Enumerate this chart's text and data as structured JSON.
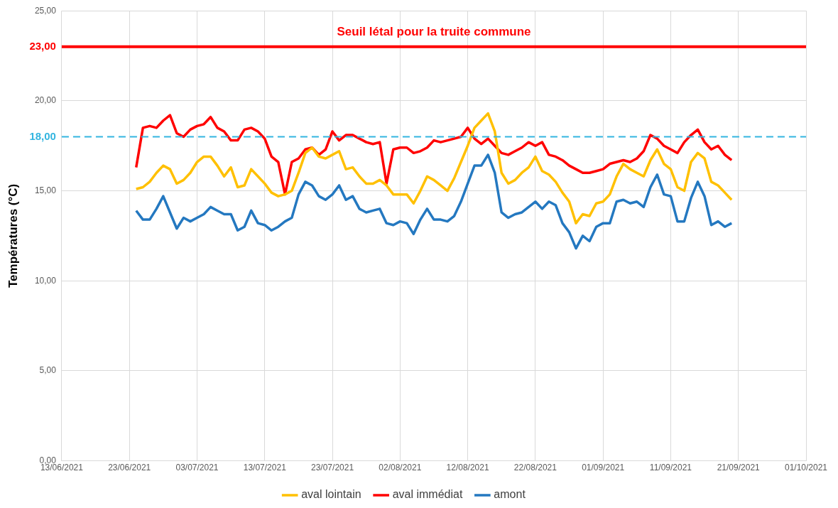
{
  "chart_data": {
    "type": "line",
    "ylabel": "Températures (°C)",
    "x": [
      "2021-06-24",
      "2021-06-25",
      "2021-06-26",
      "2021-06-27",
      "2021-06-28",
      "2021-06-29",
      "2021-06-30",
      "2021-07-01",
      "2021-07-02",
      "2021-07-03",
      "2021-07-04",
      "2021-07-05",
      "2021-07-06",
      "2021-07-07",
      "2021-07-08",
      "2021-07-09",
      "2021-07-10",
      "2021-07-11",
      "2021-07-12",
      "2021-07-13",
      "2021-07-14",
      "2021-07-15",
      "2021-07-16",
      "2021-07-17",
      "2021-07-18",
      "2021-07-19",
      "2021-07-20",
      "2021-07-21",
      "2021-07-22",
      "2021-07-23",
      "2021-07-24",
      "2021-07-25",
      "2021-07-26",
      "2021-07-27",
      "2021-07-28",
      "2021-07-29",
      "2021-07-30",
      "2021-07-31",
      "2021-08-01",
      "2021-08-02",
      "2021-08-03",
      "2021-08-04",
      "2021-08-05",
      "2021-08-06",
      "2021-08-07",
      "2021-08-08",
      "2021-08-09",
      "2021-08-10",
      "2021-08-11",
      "2021-08-12",
      "2021-08-13",
      "2021-08-14",
      "2021-08-15",
      "2021-08-16",
      "2021-08-17",
      "2021-08-18",
      "2021-08-19",
      "2021-08-20",
      "2021-08-21",
      "2021-08-22",
      "2021-08-23",
      "2021-08-24",
      "2021-08-25",
      "2021-08-26",
      "2021-08-27",
      "2021-08-28",
      "2021-08-29",
      "2021-08-30",
      "2021-08-31",
      "2021-09-01",
      "2021-09-02",
      "2021-09-03",
      "2021-09-04",
      "2021-09-05",
      "2021-09-06",
      "2021-09-07",
      "2021-09-08",
      "2021-09-09",
      "2021-09-10",
      "2021-09-11",
      "2021-09-12",
      "2021-09-13",
      "2021-09-14",
      "2021-09-15",
      "2021-09-16",
      "2021-09-17",
      "2021-09-18",
      "2021-09-19",
      "2021-09-20"
    ],
    "series": [
      {
        "name": "aval lointain",
        "color": "#ffc000",
        "values": [
          15.1,
          15.2,
          15.5,
          16.0,
          16.4,
          16.2,
          15.4,
          15.6,
          16.0,
          16.6,
          16.9,
          16.9,
          16.4,
          15.8,
          16.3,
          15.2,
          15.3,
          16.2,
          15.8,
          15.4,
          14.9,
          14.7,
          14.8,
          15.0,
          16.0,
          17.1,
          17.4,
          16.9,
          16.8,
          17.0,
          17.2,
          16.2,
          16.3,
          15.8,
          15.4,
          15.4,
          15.6,
          15.3,
          14.8,
          14.8,
          14.8,
          14.3,
          15.0,
          15.8,
          15.6,
          15.3,
          15.0,
          15.7,
          16.6,
          17.5,
          18.5,
          18.9,
          19.3,
          18.3,
          16.0,
          15.4,
          15.6,
          16.0,
          16.3,
          16.9,
          16.1,
          15.9,
          15.5,
          14.9,
          14.4,
          13.2,
          13.7,
          13.6,
          14.3,
          14.4,
          14.8,
          15.8,
          16.5,
          16.2,
          16.0,
          15.8,
          16.7,
          17.3,
          16.5,
          16.2,
          15.2,
          15.0,
          16.6,
          17.1,
          16.8,
          15.5,
          15.3,
          14.9,
          14.5
        ]
      },
      {
        "name": "aval immédiat",
        "color": "#ff0000",
        "values": [
          16.3,
          18.5,
          18.6,
          18.5,
          18.9,
          19.2,
          18.2,
          18.0,
          18.4,
          18.6,
          18.7,
          19.1,
          18.5,
          18.3,
          17.8,
          17.8,
          18.4,
          18.5,
          18.3,
          17.9,
          16.9,
          16.6,
          14.8,
          16.6,
          16.8,
          17.3,
          17.4,
          17.0,
          17.3,
          18.3,
          17.8,
          18.1,
          18.1,
          17.9,
          17.7,
          17.6,
          17.7,
          15.4,
          17.3,
          17.4,
          17.4,
          17.1,
          17.2,
          17.4,
          17.8,
          17.7,
          17.8,
          17.9,
          18.0,
          18.5,
          17.9,
          17.6,
          17.9,
          17.5,
          17.1,
          17.0,
          17.2,
          17.4,
          17.7,
          17.5,
          17.7,
          17.0,
          16.9,
          16.7,
          16.4,
          16.2,
          16.0,
          16.0,
          16.1,
          16.2,
          16.5,
          16.6,
          16.7,
          16.6,
          16.8,
          17.2,
          18.1,
          17.9,
          17.5,
          17.3,
          17.1,
          17.7,
          18.1,
          18.4,
          17.7,
          17.3,
          17.5,
          17.0,
          16.7
        ]
      },
      {
        "name": "amont",
        "color": "#2478c0",
        "values": [
          13.9,
          13.4,
          13.4,
          14.0,
          14.7,
          13.8,
          12.9,
          13.5,
          13.3,
          13.5,
          13.7,
          14.1,
          13.9,
          13.7,
          13.7,
          12.8,
          13.0,
          13.9,
          13.2,
          13.1,
          12.8,
          13.0,
          13.3,
          13.5,
          14.8,
          15.5,
          15.3,
          14.7,
          14.5,
          14.8,
          15.3,
          14.5,
          14.7,
          14.0,
          13.8,
          13.9,
          14.0,
          13.2,
          13.1,
          13.3,
          13.2,
          12.6,
          13.4,
          14.0,
          13.4,
          13.4,
          13.3,
          13.6,
          14.4,
          15.4,
          16.4,
          16.4,
          17.0,
          16.0,
          13.8,
          13.5,
          13.7,
          13.8,
          14.1,
          14.4,
          14.0,
          14.4,
          14.2,
          13.2,
          12.7,
          11.8,
          12.5,
          12.2,
          13.0,
          13.2,
          13.2,
          14.4,
          14.5,
          14.3,
          14.4,
          14.1,
          15.2,
          15.9,
          14.8,
          14.7,
          13.3,
          13.3,
          14.6,
          15.5,
          14.7,
          13.1,
          13.3,
          13.0,
          13.2
        ]
      }
    ],
    "xlim": [
      "2021-06-13",
      "2021-10-01"
    ],
    "xticks": [
      {
        "value": "2021-06-13",
        "label": "13/06/2021"
      },
      {
        "value": "2021-06-23",
        "label": "23/06/2021"
      },
      {
        "value": "2021-07-03",
        "label": "03/07/2021"
      },
      {
        "value": "2021-07-13",
        "label": "13/07/2021"
      },
      {
        "value": "2021-07-23",
        "label": "23/07/2021"
      },
      {
        "value": "2021-08-02",
        "label": "02/08/2021"
      },
      {
        "value": "2021-08-12",
        "label": "12/08/2021"
      },
      {
        "value": "2021-08-22",
        "label": "22/08/2021"
      },
      {
        "value": "2021-09-01",
        "label": "01/09/2021"
      },
      {
        "value": "2021-09-11",
        "label": "11/09/2021"
      },
      {
        "value": "2021-09-21",
        "label": "21/09/2021"
      },
      {
        "value": "2021-10-01",
        "label": "01/10/2021"
      }
    ],
    "ylim": [
      0,
      25
    ],
    "yticks": [
      {
        "value": 0,
        "label": "0,00"
      },
      {
        "value": 5,
        "label": "5,00"
      },
      {
        "value": 10,
        "label": "10,00"
      },
      {
        "value": 15,
        "label": "15,00"
      },
      {
        "value": 18,
        "label": "18,00"
      },
      {
        "value": 20,
        "label": "20,00"
      },
      {
        "value": 23,
        "label": "23,00"
      },
      {
        "value": 25,
        "label": "25,00"
      }
    ],
    "ref_lines": [
      {
        "axis": "y",
        "value": 23,
        "label": "Seuil létal pour la truite commune",
        "color": "#ff0000",
        "line_style": "solid"
      },
      {
        "axis": "y",
        "value": 18,
        "label": null,
        "color": "#33b5e0",
        "line_style": "dashed"
      }
    ],
    "grid": true,
    "legend": "bottom",
    "marker": "none",
    "line_style": "solid"
  }
}
